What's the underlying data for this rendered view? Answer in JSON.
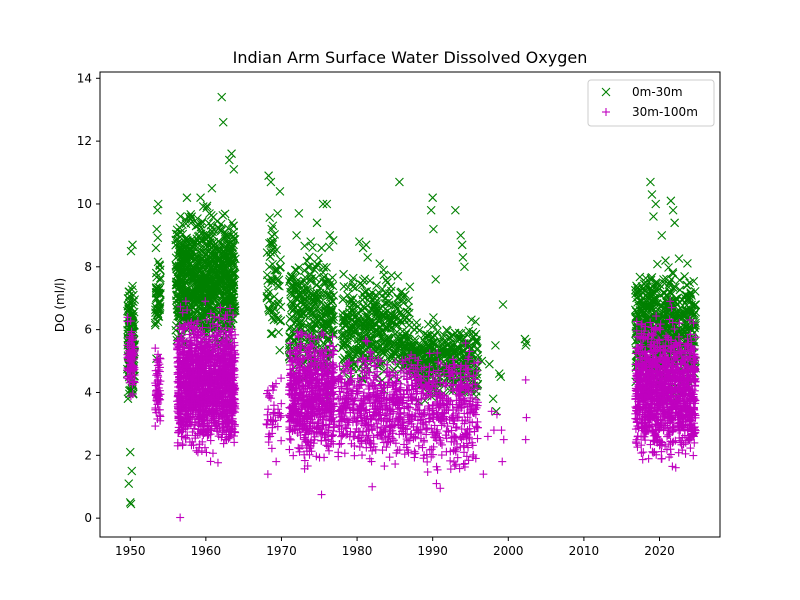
{
  "chart_data": {
    "type": "scatter",
    "title": "Indian Arm Surface Water Dissolved Oxygen",
    "xlabel": "",
    "ylabel": "DO (ml/l)",
    "xlim": [
      1946,
      2028
    ],
    "ylim": [
      -0.6,
      14.2
    ],
    "xticks": [
      1950,
      1960,
      1970,
      1980,
      1990,
      2000,
      2010,
      2020
    ],
    "yticks": [
      0,
      2,
      4,
      6,
      8,
      10,
      12,
      14
    ],
    "grid": false,
    "legend_position": "top-right",
    "series": [
      {
        "name": "0m-30m",
        "marker": "x",
        "color": "#008000",
        "clusters": [
          {
            "x": [
              1949.6,
              1950.6
            ],
            "y": [
              3.2,
              8.0
            ],
            "n": 140
          },
          {
            "x": [
              1953.3,
              1954.0
            ],
            "y": [
              4.6,
              9.4
            ],
            "n": 50
          },
          {
            "x": [
              1956.0,
              1963.9
            ],
            "y": [
              4.8,
              10.3
            ],
            "n": 900
          },
          {
            "x": [
              1968.0,
              1970.0
            ],
            "y": [
              4.5,
              10.4
            ],
            "n": 60
          },
          {
            "x": [
              1971.0,
              1977.0
            ],
            "y": [
              3.4,
              9.4
            ],
            "n": 320
          },
          {
            "x": [
              1978.0,
              1987.0
            ],
            "y": [
              3.8,
              8.2
            ],
            "n": 420
          },
          {
            "x": [
              1987.0,
              1996.0
            ],
            "y": [
              3.4,
              6.6
            ],
            "n": 380
          },
          {
            "x": [
              2016.8,
              2024.8
            ],
            "y": [
              3.4,
              8.6
            ],
            "n": 650
          }
        ],
        "points": [
          {
            "x": 1950.0,
            "y": 0.5
          },
          {
            "x": 1950.1,
            "y": 0.45
          },
          {
            "x": 1949.8,
            "y": 1.1
          },
          {
            "x": 1950.2,
            "y": 1.5
          },
          {
            "x": 1950.0,
            "y": 2.1
          },
          {
            "x": 1950.3,
            "y": 8.7
          },
          {
            "x": 1950.1,
            "y": 8.5
          },
          {
            "x": 1953.6,
            "y": 9.8
          },
          {
            "x": 1953.7,
            "y": 10.0
          },
          {
            "x": 1953.5,
            "y": 9.2
          },
          {
            "x": 1962.1,
            "y": 13.4
          },
          {
            "x": 1962.3,
            "y": 12.6
          },
          {
            "x": 1963.4,
            "y": 11.6
          },
          {
            "x": 1963.7,
            "y": 11.1
          },
          {
            "x": 1963.1,
            "y": 11.4
          },
          {
            "x": 1960.8,
            "y": 10.5
          },
          {
            "x": 1959.3,
            "y": 10.2
          },
          {
            "x": 1957.5,
            "y": 10.2
          },
          {
            "x": 1968.3,
            "y": 10.9
          },
          {
            "x": 1968.6,
            "y": 10.7
          },
          {
            "x": 1969.8,
            "y": 10.4
          },
          {
            "x": 1969.5,
            "y": 9.7
          },
          {
            "x": 1968.7,
            "y": 9.2
          },
          {
            "x": 1968.9,
            "y": 8.8
          },
          {
            "x": 1968.4,
            "y": 8.0
          },
          {
            "x": 1968.8,
            "y": 7.6
          },
          {
            "x": 1972.0,
            "y": 9.0
          },
          {
            "x": 1972.3,
            "y": 9.7
          },
          {
            "x": 1973.5,
            "y": 8.0
          },
          {
            "x": 1974.7,
            "y": 9.4
          },
          {
            "x": 1975.5,
            "y": 10.0
          },
          {
            "x": 1976.0,
            "y": 10.0
          },
          {
            "x": 1975.3,
            "y": 8.6
          },
          {
            "x": 1976.4,
            "y": 9.0
          },
          {
            "x": 1980.3,
            "y": 8.8
          },
          {
            "x": 1980.8,
            "y": 8.6
          },
          {
            "x": 1981.2,
            "y": 8.7
          },
          {
            "x": 1981.4,
            "y": 8.3
          },
          {
            "x": 1981.0,
            "y": 7.2
          },
          {
            "x": 1983.0,
            "y": 8.1
          },
          {
            "x": 1983.5,
            "y": 7.9
          },
          {
            "x": 1984.0,
            "y": 7.5
          },
          {
            "x": 1985.4,
            "y": 7.7
          },
          {
            "x": 1985.6,
            "y": 10.7
          },
          {
            "x": 1982.5,
            "y": 7.1
          },
          {
            "x": 1989.8,
            "y": 9.8
          },
          {
            "x": 1990.0,
            "y": 10.2
          },
          {
            "x": 1990.1,
            "y": 9.2
          },
          {
            "x": 1990.4,
            "y": 7.6
          },
          {
            "x": 1993.0,
            "y": 9.8
          },
          {
            "x": 1993.7,
            "y": 9.0
          },
          {
            "x": 1993.9,
            "y": 8.7
          },
          {
            "x": 1994.2,
            "y": 8.0
          },
          {
            "x": 1994.0,
            "y": 8.3
          },
          {
            "x": 1996.5,
            "y": 5.0
          },
          {
            "x": 1997.5,
            "y": 4.9
          },
          {
            "x": 1998.3,
            "y": 5.5
          },
          {
            "x": 1998.0,
            "y": 3.8
          },
          {
            "x": 1998.4,
            "y": 3.4
          },
          {
            "x": 1999.0,
            "y": 4.5
          },
          {
            "x": 1999.3,
            "y": 6.8
          },
          {
            "x": 1998.8,
            "y": 4.6
          },
          {
            "x": 2002.2,
            "y": 5.7
          },
          {
            "x": 2002.3,
            "y": 5.5
          },
          {
            "x": 2002.4,
            "y": 5.6
          },
          {
            "x": 2018.8,
            "y": 10.7
          },
          {
            "x": 2019.0,
            "y": 10.3
          },
          {
            "x": 2019.5,
            "y": 10.0
          },
          {
            "x": 2021.5,
            "y": 10.1
          },
          {
            "x": 2021.8,
            "y": 9.8
          },
          {
            "x": 2019.2,
            "y": 9.6
          },
          {
            "x": 2020.3,
            "y": 9.0
          },
          {
            "x": 2022.0,
            "y": 9.4
          }
        ]
      },
      {
        "name": "30m-100m",
        "marker": "+",
        "color": "#bf00bf",
        "clusters": [
          {
            "x": [
              1949.6,
              1950.6
            ],
            "y": [
              3.6,
              6.6
            ],
            "n": 90
          },
          {
            "x": [
              1953.3,
              1954.0
            ],
            "y": [
              2.7,
              5.6
            ],
            "n": 60
          },
          {
            "x": [
              1956.2,
              1963.9
            ],
            "y": [
              1.6,
              7.0
            ],
            "n": 1500
          },
          {
            "x": [
              1968.0,
              1970.0
            ],
            "y": [
              1.8,
              5.0
            ],
            "n": 40
          },
          {
            "x": [
              1971.0,
              1977.0
            ],
            "y": [
              1.4,
              6.4
            ],
            "n": 700
          },
          {
            "x": [
              1977.5,
              1987.0
            ],
            "y": [
              1.2,
              5.9
            ],
            "n": 520
          },
          {
            "x": [
              1987.0,
              1996.0
            ],
            "y": [
              1.0,
              6.0
            ],
            "n": 420
          },
          {
            "x": [
              2016.8,
              2024.8
            ],
            "y": [
              1.3,
              6.8
            ],
            "n": 1200
          }
        ],
        "points": [
          {
            "x": 1956.6,
            "y": 0.02
          },
          {
            "x": 1968.2,
            "y": 1.4
          },
          {
            "x": 1968.5,
            "y": 2.6
          },
          {
            "x": 1969.3,
            "y": 1.8
          },
          {
            "x": 1975.3,
            "y": 0.75
          },
          {
            "x": 1982.0,
            "y": 1.0
          },
          {
            "x": 1991.0,
            "y": 0.95
          },
          {
            "x": 1990.5,
            "y": 1.1
          },
          {
            "x": 1993.2,
            "y": 2.9
          },
          {
            "x": 1994.4,
            "y": 2.7
          },
          {
            "x": 1995.2,
            "y": 2.4
          },
          {
            "x": 1995.7,
            "y": 1.9
          },
          {
            "x": 1996.7,
            "y": 1.4
          },
          {
            "x": 1997.3,
            "y": 2.6
          },
          {
            "x": 1997.8,
            "y": 3.4
          },
          {
            "x": 1998.1,
            "y": 2.8
          },
          {
            "x": 1998.5,
            "y": 3.3
          },
          {
            "x": 1999.2,
            "y": 1.8
          },
          {
            "x": 1999.1,
            "y": 2.8
          },
          {
            "x": 1999.4,
            "y": 2.5
          },
          {
            "x": 2002.3,
            "y": 4.4
          },
          {
            "x": 2002.4,
            "y": 3.2
          },
          {
            "x": 2002.3,
            "y": 2.5
          },
          {
            "x": 2021.4,
            "y": 6.9
          },
          {
            "x": 2021.6,
            "y": 6.7
          }
        ]
      }
    ]
  }
}
